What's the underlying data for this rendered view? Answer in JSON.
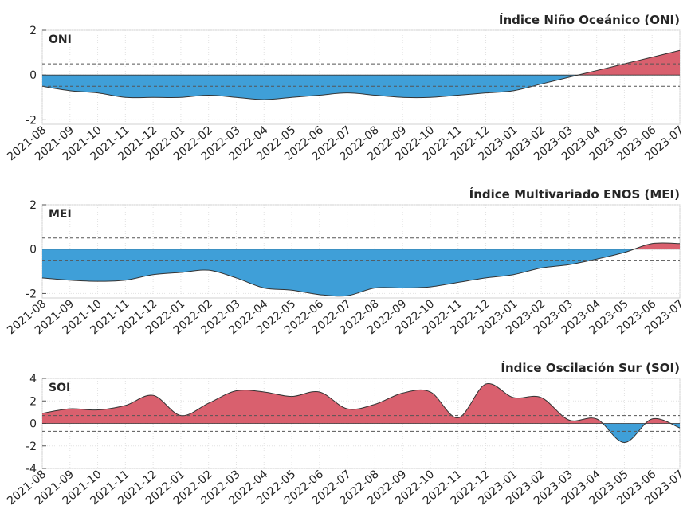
{
  "chart_data": [
    {
      "type": "area",
      "title": "Índice Niño Oceánico (ONI)",
      "categories": [
        "2021-08",
        "2021-09",
        "2021-10",
        "2021-11",
        "2021-12",
        "2022-01",
        "2022-02",
        "2022-03",
        "2022-04",
        "2022-05",
        "2022-06",
        "2022-07",
        "2022-08",
        "2022-09",
        "2022-10",
        "2022-11",
        "2022-12",
        "2023-01",
        "2023-02",
        "2023-03",
        "2023-04",
        "2023-05",
        "2023-06",
        "2023-07"
      ],
      "series": [
        {
          "name": "ONI",
          "values": [
            -0.5,
            -0.7,
            -0.8,
            -1.0,
            -1.0,
            -1.0,
            -0.9,
            -1.0,
            -1.1,
            -1.0,
            -0.9,
            -0.8,
            -0.9,
            -1.0,
            -1.0,
            -0.9,
            -0.8,
            -0.7,
            -0.4,
            -0.1,
            0.2,
            0.5,
            0.8,
            1.1
          ]
        }
      ],
      "thresholds": [
        0.5,
        -0.5
      ],
      "ylim": [
        -2.2,
        2
      ],
      "yticks": [
        -2,
        0,
        2
      ],
      "grid": true,
      "positive_color": "#d9606e",
      "negative_color": "#3f9fd8"
    },
    {
      "type": "area",
      "title": "Índice Multivariado ENOS (MEI)",
      "categories": [
        "2021-08",
        "2021-09",
        "2021-10",
        "2021-11",
        "2021-12",
        "2022-01",
        "2022-02",
        "2022-03",
        "2022-04",
        "2022-05",
        "2022-06",
        "2022-07",
        "2022-08",
        "2022-09",
        "2022-10",
        "2022-11",
        "2022-12",
        "2023-01",
        "2023-02",
        "2023-03",
        "2023-04",
        "2023-05",
        "2023-06",
        "2023-07"
      ],
      "series": [
        {
          "name": "MEI",
          "values": [
            -1.3,
            -1.4,
            -1.45,
            -1.4,
            -1.15,
            -1.05,
            -0.95,
            -1.3,
            -1.75,
            -1.85,
            -2.05,
            -2.1,
            -1.75,
            -1.75,
            -1.7,
            -1.5,
            -1.3,
            -1.15,
            -0.85,
            -0.7,
            -0.45,
            -0.15,
            0.25,
            0.25
          ]
        }
      ],
      "thresholds": [
        0.5,
        -0.5
      ],
      "ylim": [
        -2.2,
        2
      ],
      "yticks": [
        -2,
        0,
        2
      ],
      "grid": true,
      "positive_color": "#d9606e",
      "negative_color": "#3f9fd8"
    },
    {
      "type": "area",
      "title": "Índice Oscilación Sur (SOI)",
      "categories": [
        "2021-08",
        "2021-09",
        "2021-10",
        "2021-11",
        "2021-12",
        "2022-01",
        "2022-02",
        "2022-03",
        "2022-04",
        "2022-05",
        "2022-06",
        "2022-07",
        "2022-08",
        "2022-09",
        "2022-10",
        "2022-11",
        "2022-12",
        "2023-01",
        "2023-02",
        "2023-03",
        "2023-04",
        "2023-05",
        "2023-06",
        "2023-07"
      ],
      "series": [
        {
          "name": "SOI",
          "values": [
            0.9,
            1.3,
            1.2,
            1.6,
            2.5,
            0.7,
            1.8,
            2.9,
            2.8,
            2.4,
            2.8,
            1.3,
            1.7,
            2.7,
            2.8,
            0.5,
            3.5,
            2.3,
            2.3,
            0.3,
            0.4,
            -1.7,
            0.4,
            -0.4
          ]
        }
      ],
      "thresholds": [
        0.7,
        -0.7
      ],
      "ylim": [
        -4,
        4
      ],
      "yticks": [
        -4,
        -2,
        0,
        2,
        4
      ],
      "grid": true,
      "positive_color": "#d9606e",
      "negative_color": "#3f9fd8"
    }
  ]
}
